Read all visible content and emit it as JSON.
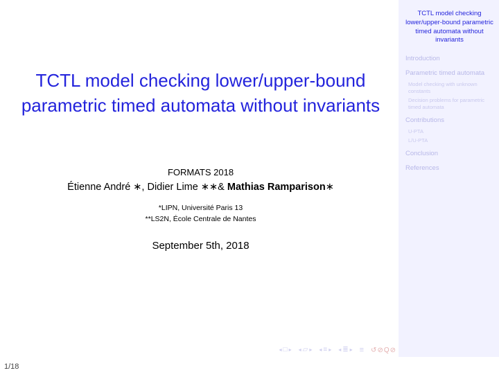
{
  "title": "TCTL model checking lower/upper-bound parametric timed automata without invariants",
  "conference": "FORMATS 2018",
  "authors_html": "Étienne André ∗, Didier Lime ∗∗& ",
  "authors_bold": "Mathias Ramparison",
  "authors_suffix": "∗",
  "affil1": "*LIPN, Université Paris 13",
  "affil2": "**LS2N, École Centrale de Nantes",
  "date": "September 5th, 2018",
  "sidebar": {
    "title": "TCTL model checking lower/upper-bound parametric timed automata without invariants",
    "s1": "Introduction",
    "s2": "Parametric timed automata",
    "s2a": "Model checking with unknown constants",
    "s2b": "Decision problems for parametric timed automata",
    "s3": "Contributions",
    "s3a": "U-PTA",
    "s3b": "L/U-PTA",
    "s4": "Conclusion",
    "s5": "References"
  },
  "page": "1/18",
  "nav_actions": "↺ℚQ⊘",
  "colors": {
    "title": "#2323dc",
    "sidebar_bg": "#f2f2ff",
    "nav_dim": "#cfcfef",
    "nav_red": "#e4b0b0",
    "section_dim": "#b8b8e8",
    "sub_dim": "#c8c8ed"
  }
}
